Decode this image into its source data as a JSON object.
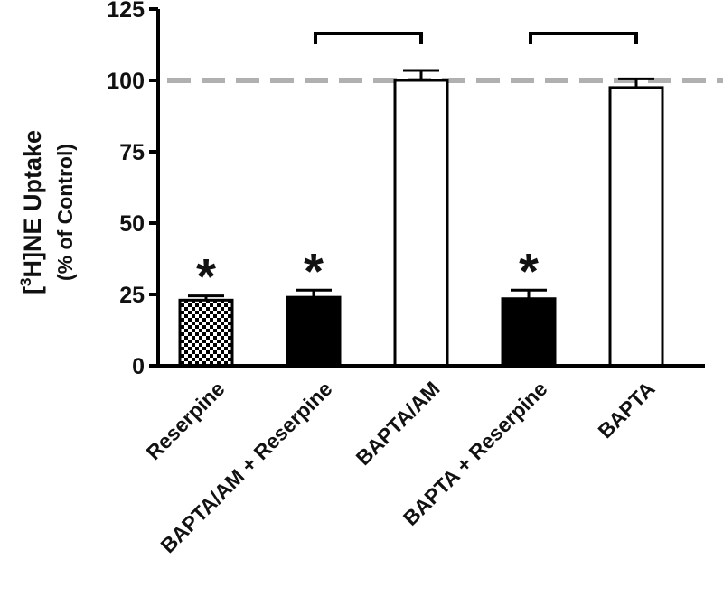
{
  "chart_data": {
    "type": "bar",
    "categories": [
      "Reserpine",
      "BAPTA/AM + Reserpine",
      "BAPTA/AM",
      "BAPTA + Reserpine",
      "BAPTA"
    ],
    "values": [
      23,
      24,
      100,
      23.5,
      97.5
    ],
    "errors": [
      1.5,
      2.5,
      3.5,
      3,
      3
    ],
    "fills": [
      "checker",
      "#000000",
      "#ffffff",
      "#000000",
      "#ffffff"
    ],
    "significance": [
      "*",
      "*",
      "",
      "*",
      ""
    ],
    "ylabel_prefix": "[",
    "ylabel_sup": "3",
    "ylabel_main": "H]NE Uptake",
    "ylabel_sub": "(% of Control)",
    "ylim": [
      0,
      125
    ],
    "yticks": [
      0,
      25,
      50,
      75,
      100,
      125
    ],
    "reference_line": {
      "value": 100,
      "color": "#b0b0b0",
      "style": "dashed"
    },
    "brackets": [
      {
        "from_index": 1,
        "to_index": 2
      },
      {
        "from_index": 3,
        "to_index": 4
      }
    ],
    "grid": false,
    "legend": "none"
  }
}
